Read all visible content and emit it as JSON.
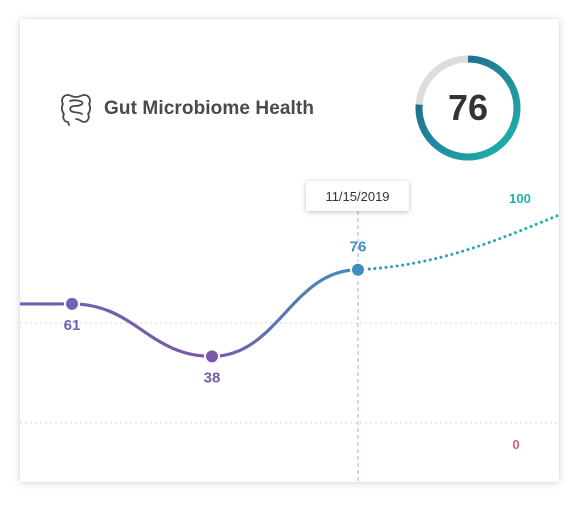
{
  "card": {
    "title": "Gut Microbiome Health",
    "icon": "intestine-icon",
    "score": "76",
    "score_fraction": 0.76,
    "gauge_colors": {
      "track": "#dddddd",
      "start": "#1fb5ae",
      "end": "#1f5c8a"
    }
  },
  "tooltip": {
    "date": "11/15/2019"
  },
  "chart_data": {
    "type": "line",
    "points": [
      {
        "value": 61,
        "label": "61"
      },
      {
        "value": 38,
        "label": "38"
      },
      {
        "value": 76,
        "label": "76"
      }
    ],
    "projection": {
      "from": 76,
      "to": 100
    },
    "reference_labels": {
      "max": "100",
      "min": "0"
    },
    "colors": {
      "line_start": "#6b63b5",
      "line_mid": "#7a5aa8",
      "line_end": "#3e8fbf",
      "projection": "#1fb5ae",
      "max_label": "#1fb5ae",
      "min_label": "#e05a6a",
      "guide": "#b8b4e0",
      "grid": "#d6d6d6"
    }
  }
}
